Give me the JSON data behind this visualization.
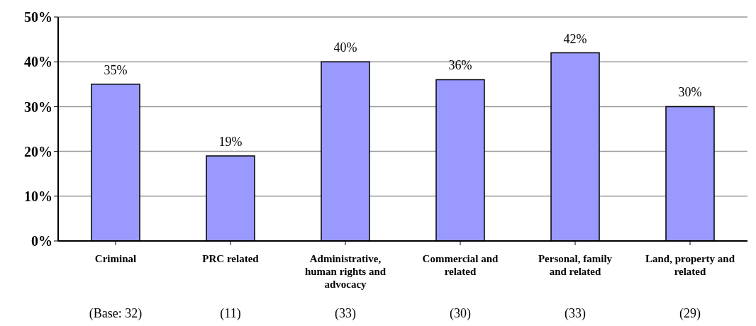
{
  "chart_data": {
    "type": "bar",
    "categories": [
      "Criminal",
      "PRC related",
      "Administrative, human rights and advocacy",
      "Commercial and related",
      "Personal, family and related",
      "Land, property and related"
    ],
    "values": [
      35,
      19,
      40,
      36,
      42,
      30
    ],
    "value_labels": [
      "35%",
      "19%",
      "40%",
      "36%",
      "42%",
      "30%"
    ],
    "color": "#9999ff",
    "ylim": [
      0,
      50
    ],
    "yticks": [
      {
        "value": 0,
        "label": "0%"
      },
      {
        "value": 10,
        "label": "10%"
      },
      {
        "value": 20,
        "label": "20%"
      },
      {
        "value": 30,
        "label": "30%"
      },
      {
        "value": 40,
        "label": "40%"
      },
      {
        "value": 50,
        "label": "50%"
      }
    ],
    "grid": "y",
    "legend": false,
    "annotations": [
      "(Base: 32)",
      "(11)",
      "(33)",
      "(30)",
      "(33)",
      "(29)"
    ]
  }
}
